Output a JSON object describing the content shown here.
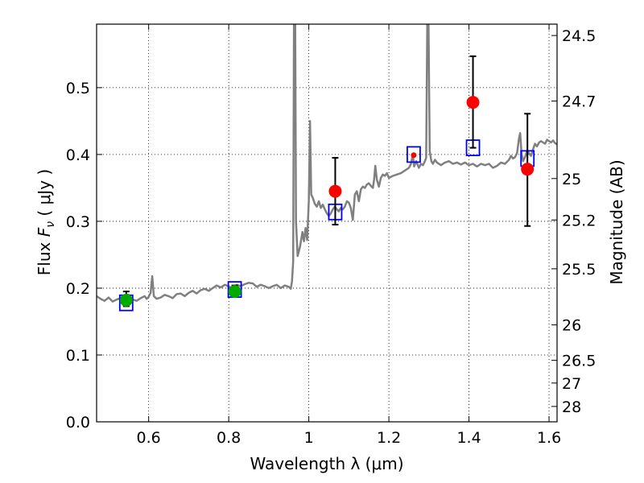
{
  "chart_data": {
    "type": "scatter",
    "xlabel": "Wavelength  λ (μm)",
    "ylabel": "Flux  F_ν  ( μJy )",
    "ylabel_parts": {
      "prefix": "Flux  ",
      "symbol": "F",
      "subscript": "ν",
      "suffix": "  ( μJy )"
    },
    "y2label": "Magnitude (AB)",
    "xlim": [
      0.47,
      1.62
    ],
    "ylim": [
      0.0,
      0.595
    ],
    "xticks": [
      0.6,
      0.8,
      1.0,
      1.2,
      1.4,
      1.6
    ],
    "xtick_labels": [
      "0.6",
      "0.8",
      "1",
      "1.2",
      "1.4",
      "1.6"
    ],
    "yticks": [
      0.0,
      0.1,
      0.2,
      0.3,
      0.4,
      0.5
    ],
    "ytick_labels": [
      "0.0",
      "0.1",
      "0.2",
      "0.3",
      "0.4",
      "0.5"
    ],
    "y2ticks": [
      {
        "label": "24.5",
        "flux": 0.578
      },
      {
        "label": "24.7",
        "flux": 0.48
      },
      {
        "label": "25",
        "flux": 0.364
      },
      {
        "label": "25.2",
        "flux": 0.302
      },
      {
        "label": "25.5",
        "flux": 0.229
      },
      {
        "label": "26",
        "flux": 0.145
      },
      {
        "label": "26.5",
        "flux": 0.092
      },
      {
        "label": "27",
        "flux": 0.058
      },
      {
        "label": "28",
        "flux": 0.023
      }
    ],
    "grid": true,
    "series": [
      {
        "name": "spectrum",
        "kind": "line",
        "color": "#808080",
        "points": [
          [
            0.47,
            0.188
          ],
          [
            0.48,
            0.184
          ],
          [
            0.49,
            0.181
          ],
          [
            0.5,
            0.186
          ],
          [
            0.51,
            0.18
          ],
          [
            0.52,
            0.183
          ],
          [
            0.53,
            0.185
          ],
          [
            0.54,
            0.187
          ],
          [
            0.55,
            0.19
          ],
          [
            0.56,
            0.183
          ],
          [
            0.57,
            0.181
          ],
          [
            0.58,
            0.185
          ],
          [
            0.59,
            0.188
          ],
          [
            0.595,
            0.184
          ],
          [
            0.6,
            0.187
          ],
          [
            0.605,
            0.193
          ],
          [
            0.609,
            0.218
          ],
          [
            0.613,
            0.188
          ],
          [
            0.62,
            0.184
          ],
          [
            0.63,
            0.186
          ],
          [
            0.64,
            0.19
          ],
          [
            0.65,
            0.188
          ],
          [
            0.66,
            0.185
          ],
          [
            0.67,
            0.191
          ],
          [
            0.68,
            0.192
          ],
          [
            0.69,
            0.188
          ],
          [
            0.7,
            0.193
          ],
          [
            0.71,
            0.196
          ],
          [
            0.72,
            0.192
          ],
          [
            0.73,
            0.197
          ],
          [
            0.74,
            0.199
          ],
          [
            0.75,
            0.196
          ],
          [
            0.76,
            0.2
          ],
          [
            0.77,
            0.204
          ],
          [
            0.78,
            0.201
          ],
          [
            0.79,
            0.205
          ],
          [
            0.8,
            0.203
          ],
          [
            0.81,
            0.199
          ],
          [
            0.82,
            0.205
          ],
          [
            0.83,
            0.203
          ],
          [
            0.84,
            0.206
          ],
          [
            0.85,
            0.208
          ],
          [
            0.86,
            0.207
          ],
          [
            0.87,
            0.202
          ],
          [
            0.88,
            0.205
          ],
          [
            0.89,
            0.203
          ],
          [
            0.9,
            0.2
          ],
          [
            0.91,
            0.203
          ],
          [
            0.92,
            0.205
          ],
          [
            0.93,
            0.2
          ],
          [
            0.94,
            0.204
          ],
          [
            0.95,
            0.202
          ],
          [
            0.955,
            0.199
          ],
          [
            0.958,
            0.21
          ],
          [
            0.961,
            0.24
          ],
          [
            0.963,
            0.6
          ],
          [
            0.966,
            0.6
          ],
          [
            0.968,
            0.3
          ],
          [
            0.972,
            0.248
          ],
          [
            0.978,
            0.262
          ],
          [
            0.984,
            0.284
          ],
          [
            0.988,
            0.27
          ],
          [
            0.992,
            0.29
          ],
          [
            0.996,
            0.272
          ],
          [
            1.0,
            0.33
          ],
          [
            1.003,
            0.45
          ],
          [
            1.006,
            0.34
          ],
          [
            1.01,
            0.335
          ],
          [
            1.015,
            0.326
          ],
          [
            1.02,
            0.322
          ],
          [
            1.025,
            0.33
          ],
          [
            1.03,
            0.32
          ],
          [
            1.035,
            0.325
          ],
          [
            1.04,
            0.318
          ],
          [
            1.045,
            0.312
          ],
          [
            1.05,
            0.308
          ],
          [
            1.055,
            0.312
          ],
          [
            1.06,
            0.318
          ],
          [
            1.065,
            0.322
          ],
          [
            1.07,
            0.318
          ],
          [
            1.075,
            0.315
          ],
          [
            1.08,
            0.32
          ],
          [
            1.085,
            0.318
          ],
          [
            1.09,
            0.322
          ],
          [
            1.095,
            0.33
          ],
          [
            1.1,
            0.328
          ],
          [
            1.105,
            0.32
          ],
          [
            1.11,
            0.302
          ],
          [
            1.115,
            0.34
          ],
          [
            1.12,
            0.345
          ],
          [
            1.125,
            0.33
          ],
          [
            1.13,
            0.348
          ],
          [
            1.135,
            0.352
          ],
          [
            1.14,
            0.35
          ],
          [
            1.145,
            0.355
          ],
          [
            1.15,
            0.357
          ],
          [
            1.155,
            0.353
          ],
          [
            1.16,
            0.35
          ],
          [
            1.163,
            0.362
          ],
          [
            1.166,
            0.383
          ],
          [
            1.17,
            0.362
          ],
          [
            1.175,
            0.352
          ],
          [
            1.18,
            0.365
          ],
          [
            1.185,
            0.37
          ],
          [
            1.19,
            0.368
          ],
          [
            1.195,
            0.372
          ],
          [
            1.2,
            0.365
          ],
          [
            1.21,
            0.368
          ],
          [
            1.22,
            0.37
          ],
          [
            1.23,
            0.372
          ],
          [
            1.24,
            0.376
          ],
          [
            1.25,
            0.38
          ],
          [
            1.255,
            0.386
          ],
          [
            1.26,
            0.4
          ],
          [
            1.263,
            0.382
          ],
          [
            1.268,
            0.39
          ],
          [
            1.275,
            0.38
          ],
          [
            1.28,
            0.386
          ],
          [
            1.285,
            0.384
          ],
          [
            1.29,
            0.39
          ],
          [
            1.293,
            0.395
          ],
          [
            1.296,
            0.6
          ],
          [
            1.299,
            0.6
          ],
          [
            1.302,
            0.405
          ],
          [
            1.306,
            0.39
          ],
          [
            1.31,
            0.386
          ],
          [
            1.315,
            0.392
          ],
          [
            1.32,
            0.388
          ],
          [
            1.33,
            0.384
          ],
          [
            1.34,
            0.388
          ],
          [
            1.35,
            0.39
          ],
          [
            1.36,
            0.386
          ],
          [
            1.37,
            0.388
          ],
          [
            1.38,
            0.385
          ],
          [
            1.39,
            0.388
          ],
          [
            1.4,
            0.384
          ],
          [
            1.41,
            0.386
          ],
          [
            1.42,
            0.382
          ],
          [
            1.43,
            0.386
          ],
          [
            1.44,
            0.384
          ],
          [
            1.45,
            0.386
          ],
          [
            1.46,
            0.38
          ],
          [
            1.47,
            0.383
          ],
          [
            1.48,
            0.388
          ],
          [
            1.49,
            0.386
          ],
          [
            1.5,
            0.392
          ],
          [
            1.505,
            0.398
          ],
          [
            1.51,
            0.394
          ],
          [
            1.515,
            0.396
          ],
          [
            1.52,
            0.402
          ],
          [
            1.525,
            0.424
          ],
          [
            1.528,
            0.432
          ],
          [
            1.531,
            0.404
          ],
          [
            1.535,
            0.39
          ],
          [
            1.54,
            0.396
          ],
          [
            1.545,
            0.405
          ],
          [
            1.55,
            0.402
          ],
          [
            1.555,
            0.398
          ],
          [
            1.56,
            0.408
          ],
          [
            1.565,
            0.416
          ],
          [
            1.57,
            0.412
          ],
          [
            1.575,
            0.418
          ],
          [
            1.58,
            0.42
          ],
          [
            1.585,
            0.418
          ],
          [
            1.59,
            0.416
          ],
          [
            1.595,
            0.422
          ],
          [
            1.6,
            0.42
          ],
          [
            1.605,
            0.418
          ],
          [
            1.61,
            0.421
          ],
          [
            1.615,
            0.417
          ],
          [
            1.62,
            0.415
          ]
        ]
      },
      {
        "name": "model-boxes",
        "kind": "open-square",
        "color": "#0000ff",
        "points": [
          [
            0.544,
            0.178
          ],
          [
            0.815,
            0.198
          ],
          [
            1.066,
            0.314
          ],
          [
            1.262,
            0.4
          ],
          [
            1.41,
            0.41
          ],
          [
            1.546,
            0.394
          ]
        ]
      },
      {
        "name": "green-points",
        "kind": "filled-circle",
        "color": "#00aa00",
        "points": [
          {
            "x": 0.544,
            "y": 0.182,
            "lo": 0.173,
            "hi": 0.195
          },
          {
            "x": 0.815,
            "y": 0.195,
            "lo": 0.188,
            "hi": 0.204
          }
        ]
      },
      {
        "name": "red-points",
        "kind": "filled-circle",
        "color": "#ff0000",
        "points": [
          {
            "x": 1.066,
            "y": 0.345,
            "lo": 0.295,
            "hi": 0.395
          },
          {
            "x": 1.262,
            "y": 0.399,
            "lo": 0.399,
            "hi": 0.399
          },
          {
            "x": 1.41,
            "y": 0.478,
            "lo": 0.41,
            "hi": 0.547
          },
          {
            "x": 1.546,
            "y": 0.378,
            "lo": 0.293,
            "hi": 0.461
          }
        ]
      }
    ]
  }
}
